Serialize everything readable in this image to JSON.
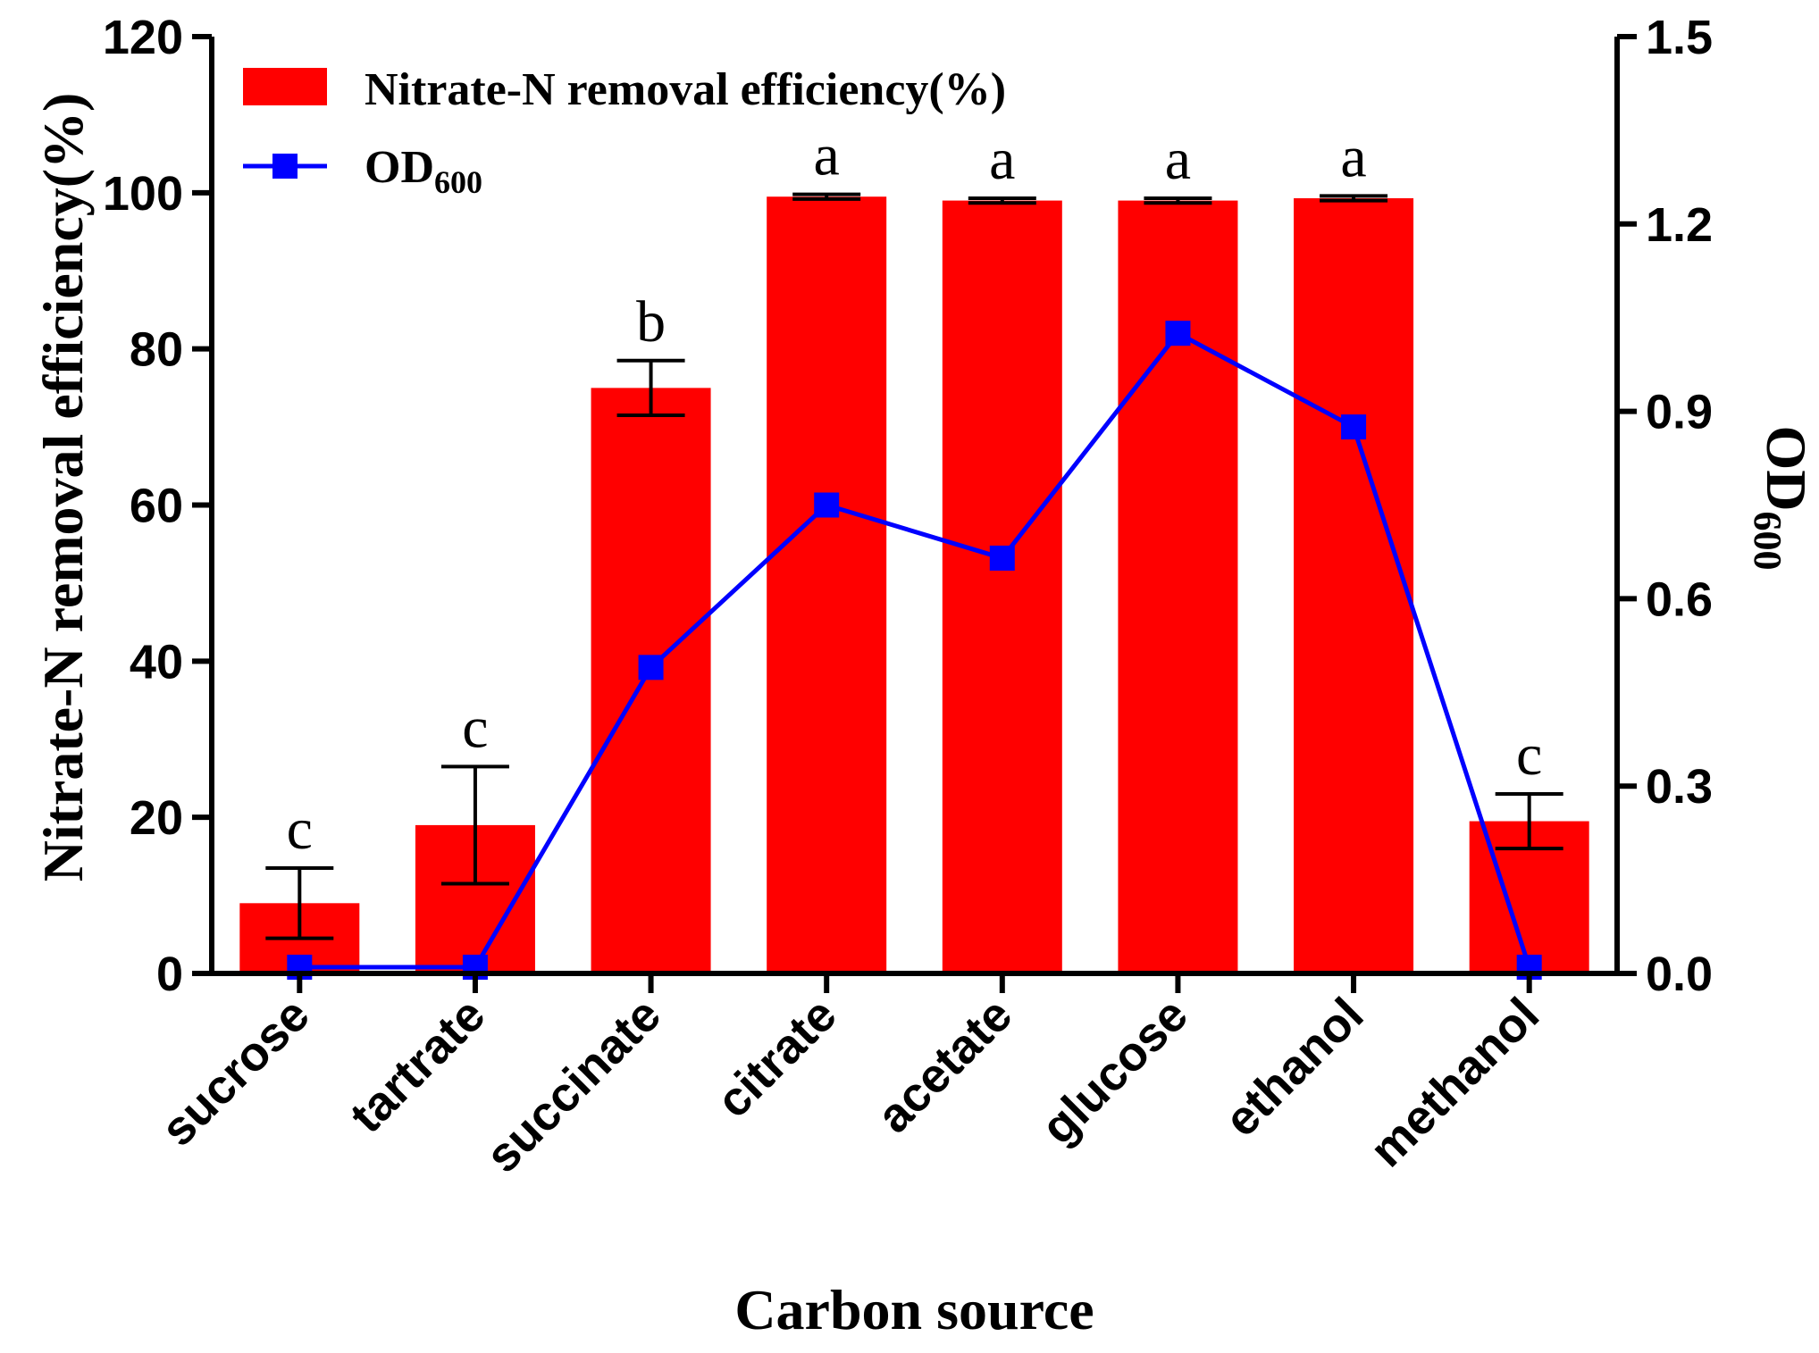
{
  "chart_data": {
    "type": "bar",
    "categories": [
      "sucrose",
      "tartrate",
      "succinate",
      "citrate",
      "acetate",
      "glucose",
      "ethanol",
      "methanol"
    ],
    "series": [
      {
        "name": "Nitrate-N removal efficiency(%)",
        "axis": "left",
        "kind": "bar",
        "color": "#ff0000",
        "values": [
          9,
          19,
          75,
          99.5,
          99,
          99,
          99.3,
          19.5
        ],
        "error": [
          4.5,
          7.5,
          3.5,
          0.3,
          0.3,
          0.3,
          0.3,
          3.5
        ],
        "significance": [
          "c",
          "c",
          "b",
          "a",
          "a",
          "a",
          "a",
          "c"
        ]
      },
      {
        "name": "OD",
        "name_subscript": "600",
        "axis": "right",
        "kind": "line",
        "marker": "square",
        "color": "#0000ff",
        "values": [
          0.01,
          0.01,
          0.49,
          0.75,
          0.665,
          1.025,
          0.875,
          0.01
        ]
      }
    ],
    "xlabel": "Carbon source",
    "ylabel": "Nitrate-N removal efficiency(%)",
    "y2label": "OD",
    "y2label_subscript": "600",
    "ylim": [
      0,
      120
    ],
    "y2lim": [
      0,
      1.5
    ],
    "yticks": [
      "0",
      "20",
      "40",
      "60",
      "80",
      "100",
      "120"
    ],
    "y2ticks": [
      "0.0",
      "0.3",
      "0.6",
      "0.9",
      "1.2",
      "1.5"
    ],
    "legend_position": "top-left",
    "grid": false
  }
}
